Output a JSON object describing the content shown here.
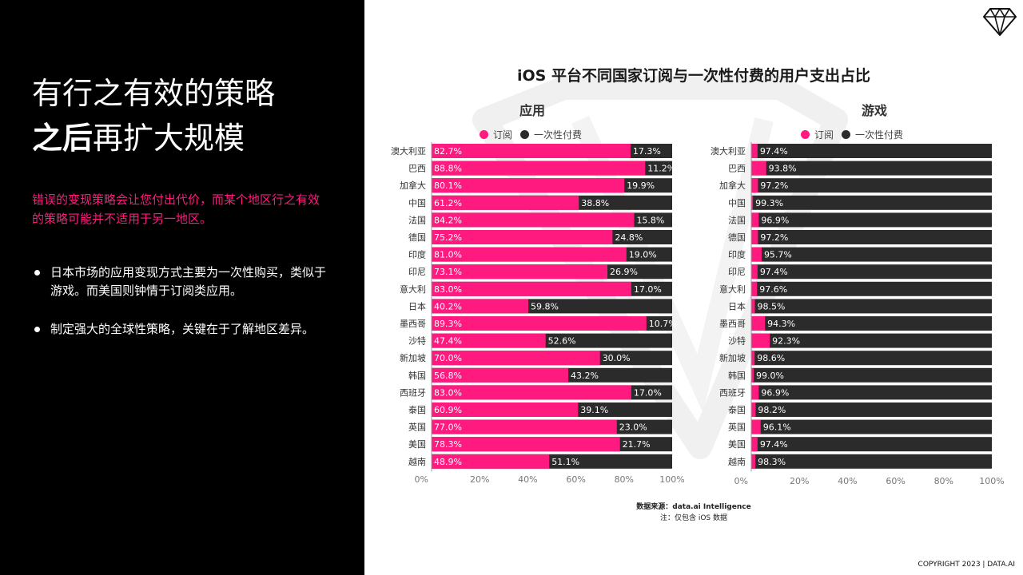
{
  "slide": {
    "title_line1": "有行之有效的策略",
    "title_line2_bold": "之后",
    "title_line2_rest": "再扩大规模",
    "subtitle": "错误的变现策略会让您付出代价，而某个地区行之有效的策略可能并不适用于另一地区。",
    "bullets": [
      "日本市场的应用变现方式主要为一次性购买，类似于游戏。而美国则钟情于订阅类应用。",
      "制定强大的全球性策略，关键在于了解地区差异。"
    ],
    "source_line1": "数据来源：data.ai Intelligence",
    "source_line2": "注：仅包含 iOS 数据",
    "copyright": "COPYRIGHT 2023 | DATA.AI"
  },
  "colors": {
    "subscription": "#ff1a7f",
    "one_time": "#2b2b2b",
    "accent": "#ff1a7f"
  },
  "icons": {
    "logo": "diamond-icon"
  },
  "chart_data": {
    "type": "bar",
    "orientation": "horizontal-stacked-100",
    "title": "iOS 平台不同国家订阅与一次性付费的用户支出占比",
    "legend": [
      "订阅",
      "一次性付费"
    ],
    "xlim": [
      0,
      100
    ],
    "x_ticks": [
      "0%",
      "20%",
      "40%",
      "60%",
      "80%",
      "100%"
    ],
    "categories": [
      "澳大利亚",
      "巴西",
      "加拿大",
      "中国",
      "法国",
      "德国",
      "印度",
      "印尼",
      "意大利",
      "日本",
      "墨西哥",
      "沙特",
      "新加坡",
      "韩国",
      "西班牙",
      "泰国",
      "英国",
      "美国",
      "越南"
    ],
    "panels": [
      {
        "title": "应用",
        "series": [
          {
            "name": "订阅",
            "values": [
              82.7,
              88.8,
              80.1,
              61.2,
              84.2,
              75.2,
              81.0,
              73.1,
              83.0,
              40.2,
              89.3,
              47.4,
              70.0,
              56.8,
              83.0,
              60.9,
              77.0,
              78.3,
              48.9
            ]
          },
          {
            "name": "一次性付费",
            "values": [
              17.3,
              11.2,
              19.9,
              38.8,
              15.8,
              24.8,
              19.0,
              26.9,
              17.0,
              59.8,
              10.7,
              52.6,
              30.0,
              43.2,
              17.0,
              39.1,
              23.0,
              21.7,
              51.1
            ]
          }
        ]
      },
      {
        "title": "游戏",
        "series": [
          {
            "name": "订阅",
            "values": [
              2.6,
              6.2,
              2.8,
              0.7,
              3.1,
              2.8,
              4.3,
              2.6,
              2.4,
              1.5,
              5.7,
              7.7,
              1.4,
              1.0,
              3.1,
              1.8,
              3.9,
              2.6,
              1.7
            ]
          },
          {
            "name": "一次性付费",
            "values": [
              97.4,
              93.8,
              97.2,
              99.3,
              96.9,
              97.2,
              95.7,
              97.4,
              97.6,
              98.5,
              94.3,
              92.3,
              98.6,
              99.0,
              96.9,
              98.2,
              96.1,
              97.4,
              98.3
            ]
          }
        ]
      }
    ]
  }
}
